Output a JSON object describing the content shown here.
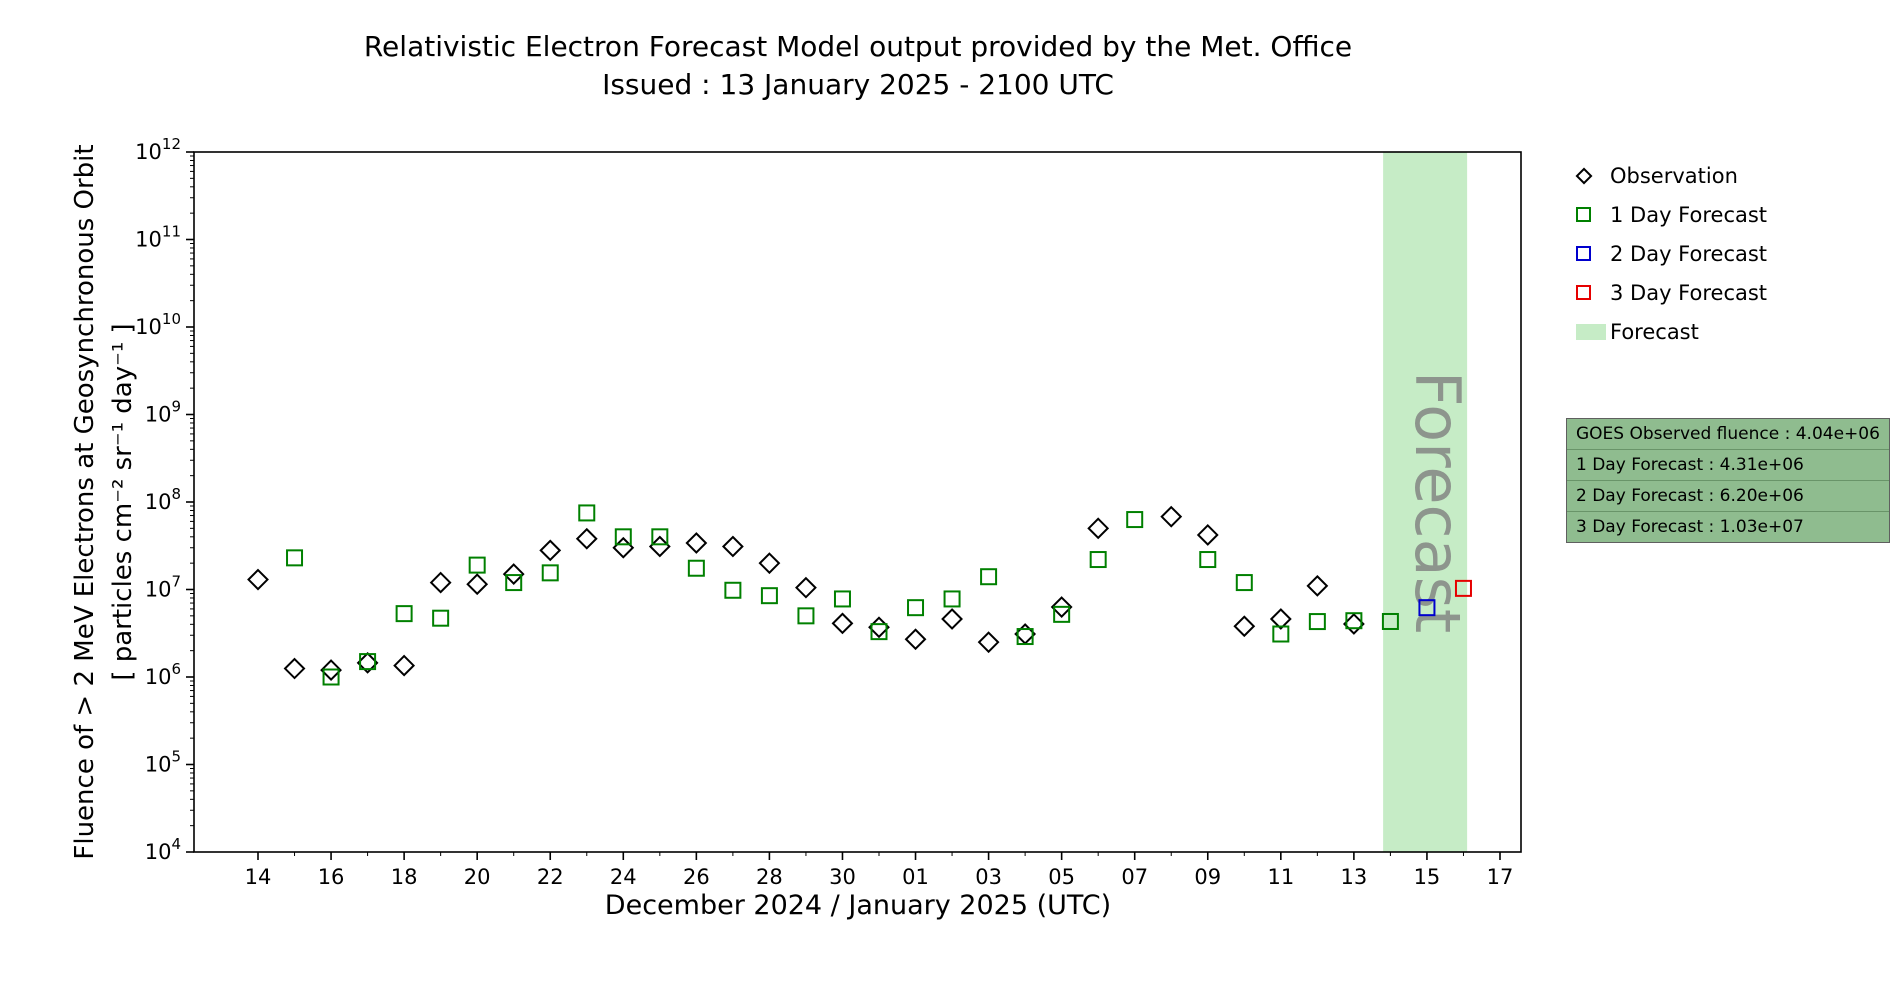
{
  "title": "Relativistic Electron Forecast Model output provided by the Met. Office",
  "subtitle": "Issued : 13 January 2025 - 2100 UTC",
  "axes": {
    "xlabel": "December 2024 / January 2025 (UTC)",
    "ylabel_line1": "Fluence of > 2 MeV Electrons at Geosynchronous Orbit",
    "ylabel_line2": "[ particles cm⁻² sr⁻¹ day⁻¹ ]"
  },
  "legend": {
    "items": [
      {
        "label": "Observation",
        "marker": "diamond",
        "color": "#000000"
      },
      {
        "label": "1 Day Forecast",
        "marker": "square",
        "color": "#008000"
      },
      {
        "label": "2 Day Forecast",
        "marker": "square",
        "color": "#0000cd"
      },
      {
        "label": "3 Day Forecast",
        "marker": "square",
        "color": "#e60000"
      },
      {
        "label": "Forecast",
        "marker": "band",
        "color": "#c6ecc6"
      }
    ]
  },
  "info_box": {
    "background": "#8fbc8f",
    "lines": [
      "GOES Observed fluence : 4.04e+06",
      "1 Day Forecast : 4.31e+06",
      "2 Day Forecast : 6.20e+06",
      "3 Day Forecast : 1.03e+07"
    ]
  },
  "chart_data": {
    "type": "scatter",
    "title": "Relativistic Electron Forecast Model output provided by the Met. Office",
    "subtitle": "Issued : 13 January 2025 - 2100 UTC",
    "xlabel": "December 2024 / January 2025 (UTC)",
    "ylabel": "Fluence of > 2 MeV Electrons at Geosynchronous Orbit [ particles cm-2 sr-1 day-1 ]",
    "y_scale": "log",
    "ylim": [
      10000.0,
      1000000000000.0
    ],
    "y_exponent_range": [
      4,
      12
    ],
    "grid": false,
    "legend_position": "right",
    "x_axis": {
      "day0_date": "14 December 2024",
      "tick_days": [
        0,
        2,
        4,
        6,
        8,
        10,
        12,
        14,
        16,
        18,
        20,
        22,
        24,
        26,
        28,
        30,
        32,
        34
      ],
      "tick_labels": [
        "14",
        "16",
        "18",
        "20",
        "22",
        "24",
        "26",
        "28",
        "30",
        "01",
        "03",
        "05",
        "07",
        "09",
        "11",
        "13",
        "15",
        "17"
      ]
    },
    "forecast_band": {
      "start_day": 30.8,
      "end_day": 33.1,
      "label": "Forecast",
      "color": "#c6ecc6",
      "text_color": "#808080"
    },
    "series": [
      {
        "name": "Observation",
        "marker": "diamond",
        "color": "#000000",
        "points": [
          [
            0,
            13000000.0
          ],
          [
            1,
            1250000.0
          ],
          [
            2,
            1200000.0
          ],
          [
            3,
            1450000.0
          ],
          [
            4,
            1350000.0
          ],
          [
            5,
            12000000.0
          ],
          [
            6,
            11500000.0
          ],
          [
            7,
            15000000.0
          ],
          [
            8,
            28000000.0
          ],
          [
            9,
            38000000.0
          ],
          [
            10,
            30000000.0
          ],
          [
            11,
            31000000.0
          ],
          [
            12,
            34000000.0
          ],
          [
            13,
            31000000.0
          ],
          [
            14,
            20000000.0
          ],
          [
            15,
            10500000.0
          ],
          [
            16,
            4100000.0
          ],
          [
            17,
            3700000.0
          ],
          [
            18,
            2700000.0
          ],
          [
            19,
            4600000.0
          ],
          [
            20,
            2500000.0
          ],
          [
            21,
            3100000.0
          ],
          [
            22,
            6300000.0
          ],
          [
            23,
            50000000.0
          ],
          [
            25,
            68000000.0
          ],
          [
            26,
            42000000.0
          ],
          [
            27,
            3800000.0
          ],
          [
            28,
            4600000.0
          ],
          [
            29,
            11000000.0
          ],
          [
            30,
            4040000.0
          ]
        ]
      },
      {
        "name": "1 Day Forecast",
        "marker": "square",
        "color": "#008000",
        "points": [
          [
            1,
            23000000.0
          ],
          [
            2,
            1000000.0
          ],
          [
            3,
            1500000.0
          ],
          [
            4,
            5300000.0
          ],
          [
            5,
            4700000.0
          ],
          [
            6,
            19000000.0
          ],
          [
            7,
            12000000.0
          ],
          [
            8,
            15500000.0
          ],
          [
            9,
            75000000.0
          ],
          [
            10,
            40000000.0
          ],
          [
            11,
            40000000.0
          ],
          [
            12,
            17500000.0
          ],
          [
            13,
            9800000.0
          ],
          [
            14,
            8500000.0
          ],
          [
            15,
            5000000.0
          ],
          [
            16,
            7800000.0
          ],
          [
            17,
            3300000.0
          ],
          [
            18,
            6200000.0
          ],
          [
            19,
            7800000.0
          ],
          [
            20,
            14000000.0
          ],
          [
            21,
            2900000.0
          ],
          [
            22,
            5200000.0
          ],
          [
            23,
            22000000.0
          ],
          [
            24,
            63000000.0
          ],
          [
            26,
            22000000.0
          ],
          [
            27,
            12000000.0
          ],
          [
            28,
            3100000.0
          ],
          [
            29,
            4300000.0
          ],
          [
            30,
            4400000.0
          ],
          [
            31,
            4310000.0
          ]
        ]
      },
      {
        "name": "2 Day Forecast",
        "marker": "square",
        "color": "#0000cd",
        "points": [
          [
            32,
            6200000.0
          ]
        ]
      },
      {
        "name": "3 Day Forecast",
        "marker": "square",
        "color": "#e60000",
        "points": [
          [
            33,
            10300000.0
          ]
        ]
      }
    ]
  }
}
